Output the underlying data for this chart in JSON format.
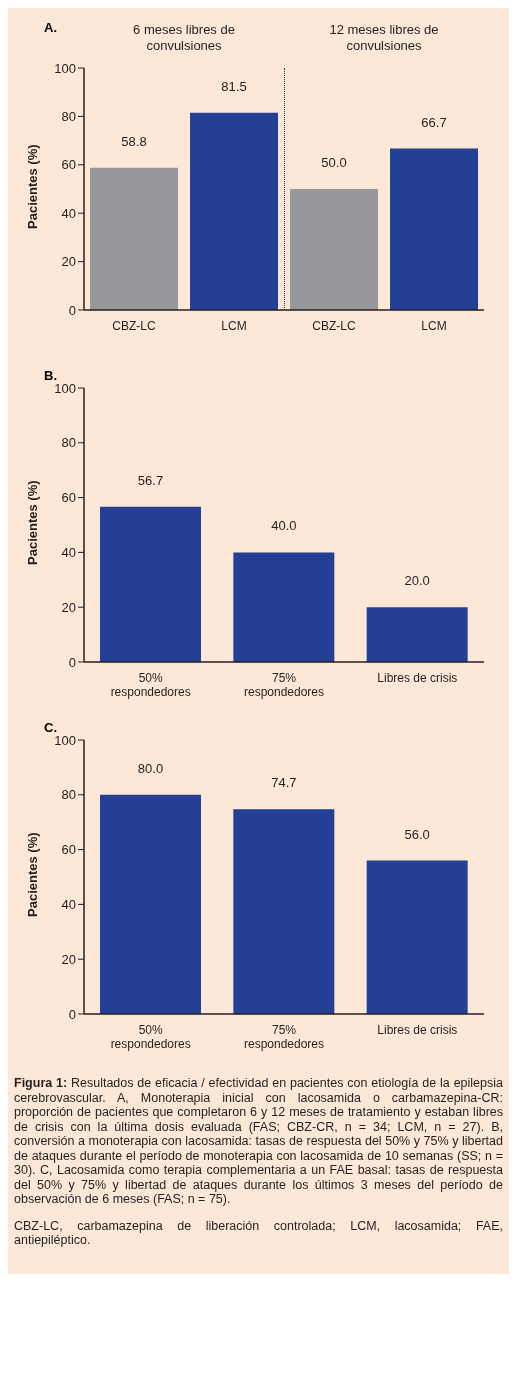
{
  "chart_data": [
    {
      "type": "bar",
      "title": "A.",
      "ylabel": "Pacientes (%)",
      "categories": [
        "CBZ-LC",
        "LCM",
        "CBZ-LC",
        "LCM"
      ],
      "values": [
        58.8,
        81.5,
        50.0,
        66.7
      ],
      "colors": [
        "#97989c",
        "#233f96",
        "#97989c",
        "#233f96"
      ],
      "value_labels": [
        "58.8",
        "81.5",
        "50.0",
        "66.7"
      ],
      "ylim": [
        0,
        100
      ],
      "yticks": [
        0,
        20,
        40,
        60,
        80,
        100
      ],
      "annotations": [
        "6 meses libres de convulsiones",
        "12 meses libres de convulsiones"
      ]
    },
    {
      "type": "bar",
      "title": "B.",
      "ylabel": "Pacientes (%)",
      "categories": [
        "50% respondedores",
        "75% respondedores",
        "Libres de crisis"
      ],
      "values": [
        56.7,
        40.0,
        20.0
      ],
      "color": "#233f96",
      "value_labels": [
        "56.7",
        "40.0",
        "20.0"
      ],
      "ylim": [
        0,
        100
      ],
      "yticks": [
        0,
        20,
        40,
        60,
        80,
        100
      ]
    },
    {
      "type": "bar",
      "title": "C.",
      "ylabel": "Pacientes (%)",
      "categories": [
        "50% respondedores",
        "75% respondedores",
        "Libres de crisis"
      ],
      "values": [
        80.0,
        74.7,
        56.0
      ],
      "color": "#233f96",
      "value_labels": [
        "80.0",
        "74.7",
        "56.0"
      ],
      "ylim": [
        0,
        100
      ],
      "yticks": [
        0,
        20,
        40,
        60,
        80,
        100
      ],
      "annotations": [
        "Figura 1: Resultados de eficacia / efectividad en pacientes con etiología de la epilepsia cerebrovascular. A, Monoterapia inicial con lacosamida o carbamazepina-CR: proporción de pacientes que completaron 6 y 12 meses de tratamiento y estaban libres de crisis con la última dosis evaluada (FAS; CBZ-CR, n = 34; LCM, n = 27). B, conversión a monoterapia con lacosamida: tasas de respuesta del 50% y 75% y libertad de ataques durante el período de monoterapia con lacosamida de 10 semanas (SS; n = 30). C, Lacosamida como terapia complementaria a un FAE basal: tasas de respuesta del 50% y 75% y libertad de ataques durante los últimos 3 meses del período de observación de 6 meses (FAS; n = 75).",
        "CBZ-LC, carbamazepina de liberación controlada; LCM, lacosamida; FAE, antiepiléptico."
      ]
    }
  ]
}
